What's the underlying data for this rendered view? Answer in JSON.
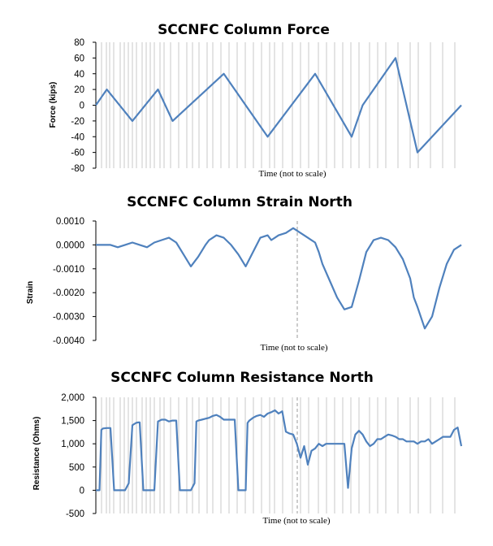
{
  "colors": {
    "series": "#4f81bd",
    "grid": "#c8c8c8",
    "marker_line": "#9a9a9a",
    "axis": "#000000"
  },
  "charts": [
    {
      "title": "SCCNFC Column Force",
      "ylabel": "Force (kips)",
      "xlabel": "Time (not to scale)",
      "yticks": [
        "80",
        "60",
        "40",
        "20",
        "0",
        "-20",
        "-40",
        "-60",
        "-80"
      ]
    },
    {
      "title": "SCCNFC Column Strain North",
      "ylabel": "Strain",
      "xlabel": "Time (not to scale)",
      "yticks": [
        "0.0010",
        "0.0000",
        "-0.0010",
        "-0.0020",
        "-0.0030",
        "-0.0040"
      ]
    },
    {
      "title": "SCCNFC Column Resistance North",
      "ylabel": "Resistance (Ohms)",
      "xlabel": "Time (not to scale)",
      "yticks": [
        "2,000",
        "1,500",
        "1,000",
        "500",
        "0",
        "-500"
      ]
    }
  ],
  "chart_data": [
    {
      "type": "line",
      "title": "SCCNFC Column Force",
      "xlabel": "Time (not to scale)",
      "ylabel": "Force (kips)",
      "ylim": [
        -80,
        80
      ],
      "xlim": [
        0,
        100
      ],
      "vertical_gridlines": true,
      "x": [
        0,
        3,
        10,
        17,
        21,
        35,
        47,
        60,
        70,
        73,
        82,
        88,
        100
      ],
      "y": [
        0,
        20,
        -20,
        20,
        -20,
        40,
        -40,
        40,
        -40,
        0,
        60,
        -60,
        0
      ]
    },
    {
      "type": "line",
      "title": "SCCNFC Column Strain North",
      "xlabel": "Time (not to scale)",
      "ylabel": "Strain",
      "ylim": [
        -0.004,
        0.001
      ],
      "xlim": [
        0,
        100
      ],
      "vertical_gridlines": false,
      "x": [
        0,
        2,
        4,
        6,
        8,
        10,
        12,
        14,
        16,
        18,
        20,
        22,
        24,
        26,
        28,
        30,
        31,
        32,
        33,
        35,
        37,
        39,
        41,
        43,
        45,
        47,
        48,
        49,
        50,
        52,
        54,
        56,
        58,
        60,
        61,
        62,
        64,
        66,
        68,
        70,
        72,
        74,
        76,
        78,
        80,
        82,
        84,
        86,
        87,
        88,
        90,
        92,
        94,
        96,
        98,
        100
      ],
      "y": [
        0.0,
        0.0,
        0.0,
        -0.0001,
        0.0,
        0.0001,
        0.0,
        -0.0001,
        0.0001,
        0.0002,
        0.0003,
        0.0001,
        -0.0004,
        -0.0009,
        -0.0005,
        0.0,
        0.0002,
        0.0003,
        0.0004,
        0.0003,
        0.0,
        -0.0004,
        -0.0009,
        -0.0003,
        0.0003,
        0.0004,
        0.0002,
        0.0003,
        0.0004,
        0.0005,
        0.0007,
        0.0005,
        0.0003,
        0.0001,
        -0.0003,
        -0.0008,
        -0.0015,
        -0.0022,
        -0.0027,
        -0.0026,
        -0.0015,
        -0.0003,
        0.0002,
        0.0003,
        0.0002,
        -0.0001,
        -0.0006,
        -0.0014,
        -0.0022,
        -0.0026,
        -0.0035,
        -0.003,
        -0.0018,
        -0.0008,
        -0.0002,
        0.0
      ]
    },
    {
      "type": "line",
      "title": "SCCNFC Column Resistance North",
      "xlabel": "Time (not to scale)",
      "ylabel": "Resistance (Ohms)",
      "ylim": [
        -500,
        2000
      ],
      "xlim": [
        0,
        100
      ],
      "vertical_gridlines": true,
      "x": [
        0,
        1,
        1.5,
        2,
        3,
        4,
        5,
        6,
        7,
        8,
        9,
        10,
        11,
        11.5,
        12,
        13,
        14,
        15,
        16,
        17,
        18,
        19,
        20,
        21,
        22,
        23,
        24,
        25,
        26,
        27,
        27.5,
        28,
        29,
        30,
        31,
        32,
        33,
        34,
        35,
        36,
        37,
        38,
        39,
        40,
        41,
        41.5,
        42,
        43,
        44,
        45,
        46,
        47,
        48,
        49,
        50,
        51,
        52,
        53,
        54,
        55,
        56,
        57,
        58,
        59,
        60,
        61,
        62,
        63,
        64,
        65,
        66,
        67,
        68,
        69,
        70,
        71,
        72,
        73,
        74,
        75,
        76,
        77,
        78,
        79,
        80,
        81,
        82,
        83,
        84,
        85,
        86,
        87,
        88,
        89,
        90,
        91,
        92,
        93,
        94,
        95,
        96,
        97,
        98,
        99,
        100
      ],
      "y": [
        0,
        0,
        1300,
        1330,
        1340,
        1340,
        0,
        0,
        0,
        0,
        150,
        1400,
        1450,
        1460,
        1460,
        0,
        0,
        0,
        0,
        1480,
        1520,
        1520,
        1480,
        1500,
        1500,
        0,
        0,
        0,
        0,
        150,
        1480,
        1500,
        1520,
        1540,
        1560,
        1600,
        1620,
        1580,
        1520,
        1520,
        1520,
        1520,
        0,
        0,
        0,
        1450,
        1500,
        1560,
        1600,
        1620,
        1580,
        1650,
        1680,
        1720,
        1650,
        1700,
        1260,
        1220,
        1200,
        1000,
        700,
        950,
        550,
        850,
        900,
        1000,
        950,
        1000,
        1000,
        1000,
        1000,
        1000,
        1000,
        50,
        900,
        1200,
        1280,
        1200,
        1050,
        950,
        1000,
        1100,
        1100,
        1150,
        1200,
        1180,
        1150,
        1100,
        1100,
        1050,
        1050,
        1050,
        1000,
        1050,
        1050,
        1100,
        1000,
        1050,
        1100,
        1150,
        1150,
        1150,
        1300,
        1350,
        950
      ]
    }
  ]
}
